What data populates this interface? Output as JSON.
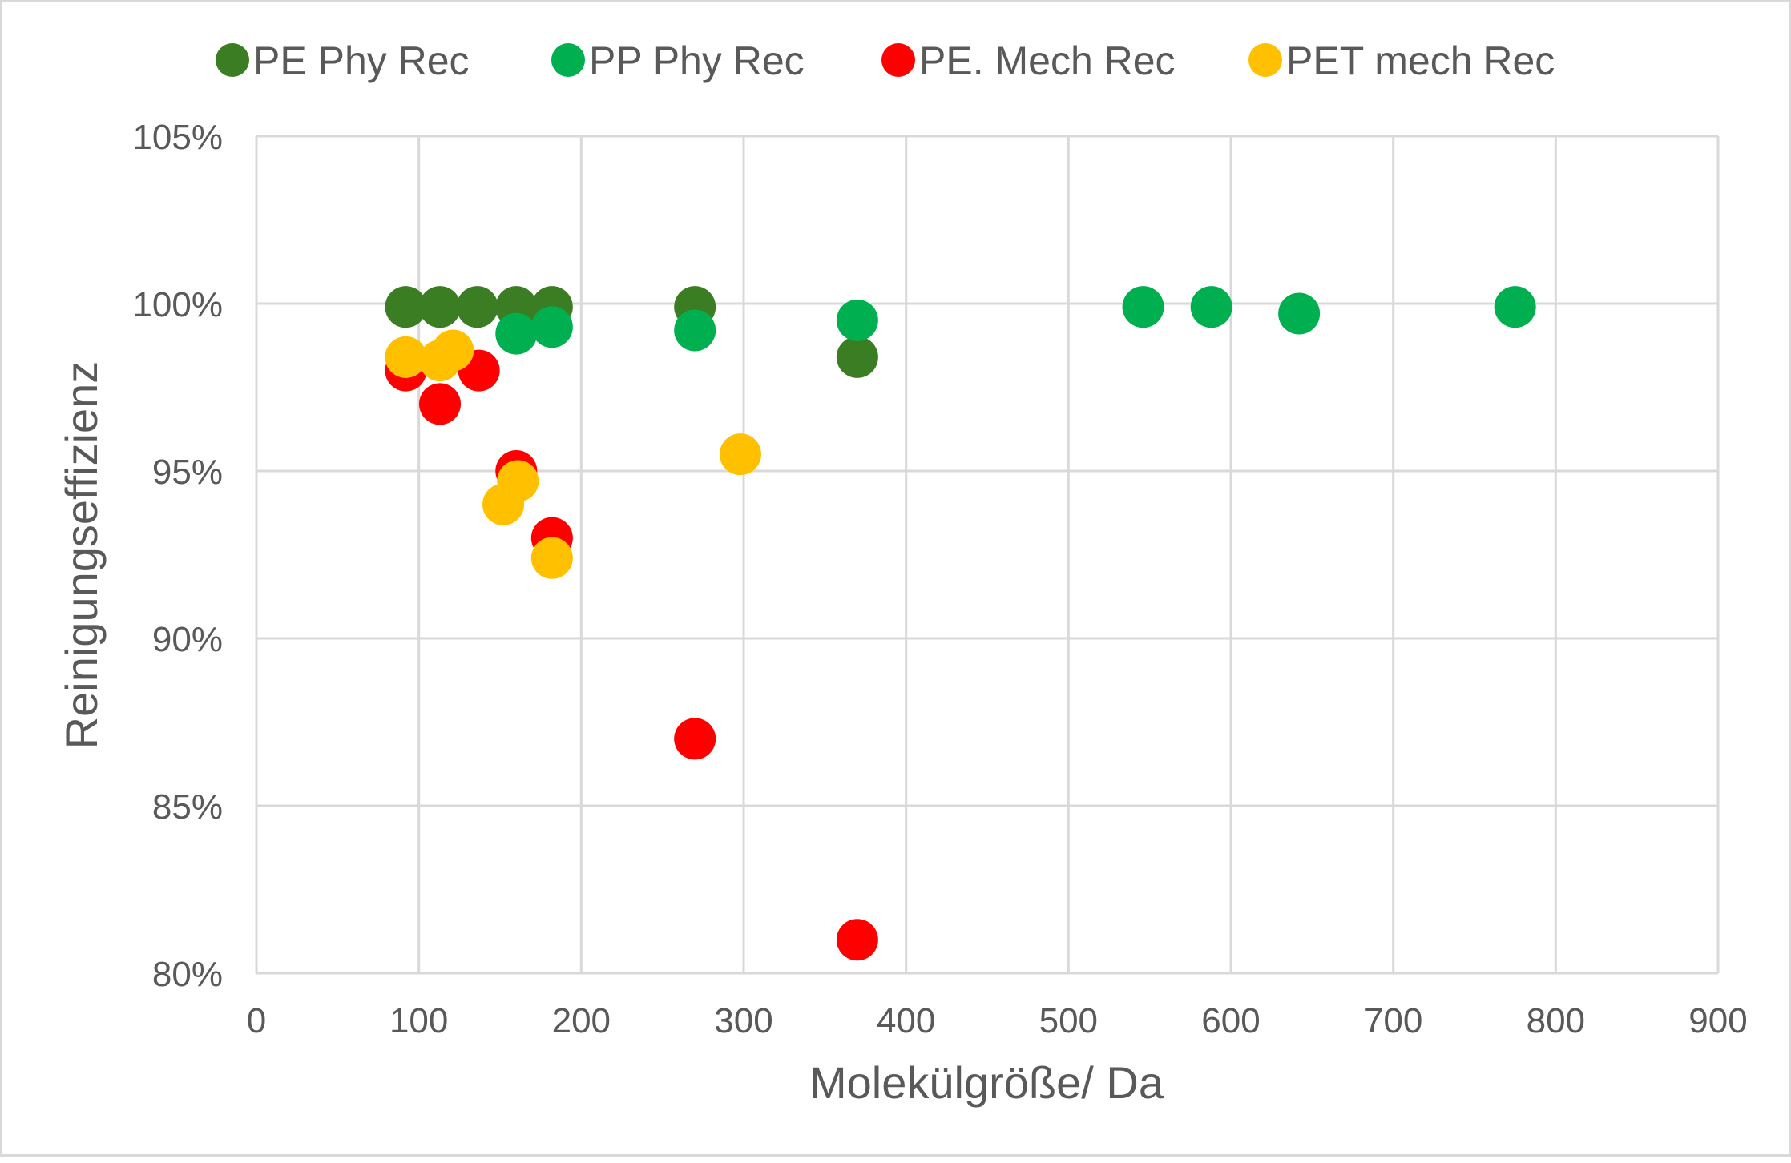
{
  "chart_data": {
    "type": "scatter",
    "xlabel": "Molekülgröße/ Da",
    "ylabel": "Reinigungseffizienz",
    "xlim": [
      0,
      900
    ],
    "ylim": [
      0.8,
      1.05
    ],
    "x_ticks": [
      0,
      100,
      200,
      300,
      400,
      500,
      600,
      700,
      800,
      900
    ],
    "x_tick_labels": [
      "0",
      "100",
      "200",
      "300",
      "400",
      "500",
      "600",
      "700",
      "800",
      "900"
    ],
    "y_ticks": [
      0.8,
      0.85,
      0.9,
      0.95,
      1.0,
      1.05
    ],
    "y_tick_labels": [
      "80%",
      "85%",
      "90%",
      "95%",
      "100%",
      "105%"
    ],
    "grid": true,
    "legend_position": "top",
    "series": [
      {
        "name": "PE Phy Rec",
        "color": "#3a7d22",
        "points": [
          [
            92,
            0.999
          ],
          [
            113,
            0.999
          ],
          [
            136,
            0.999
          ],
          [
            160,
            0.999
          ],
          [
            182,
            0.999
          ],
          [
            270,
            0.999
          ],
          [
            370,
            0.984
          ]
        ]
      },
      {
        "name": "PP Phy Rec",
        "color": "#00b050",
        "points": [
          [
            160,
            0.991
          ],
          [
            182,
            0.993
          ],
          [
            270,
            0.992
          ],
          [
            370,
            0.995
          ],
          [
            546,
            0.999
          ],
          [
            588,
            0.999
          ],
          [
            642,
            0.997
          ],
          [
            775,
            0.999
          ]
        ]
      },
      {
        "name": "PE. Mech Rec",
        "color": "#ff0000",
        "points": [
          [
            92,
            0.98
          ],
          [
            113,
            0.97
          ],
          [
            137,
            0.98
          ],
          [
            160,
            0.95
          ],
          [
            182,
            0.93
          ],
          [
            270,
            0.87
          ],
          [
            370,
            0.81
          ]
        ]
      },
      {
        "name": "PET mech Rec",
        "color": "#ffc000",
        "points": [
          [
            92,
            0.984
          ],
          [
            113,
            0.983
          ],
          [
            121,
            0.986
          ],
          [
            152,
            0.94
          ],
          [
            161,
            0.947
          ],
          [
            182,
            0.924
          ],
          [
            298,
            0.955
          ]
        ]
      }
    ]
  }
}
